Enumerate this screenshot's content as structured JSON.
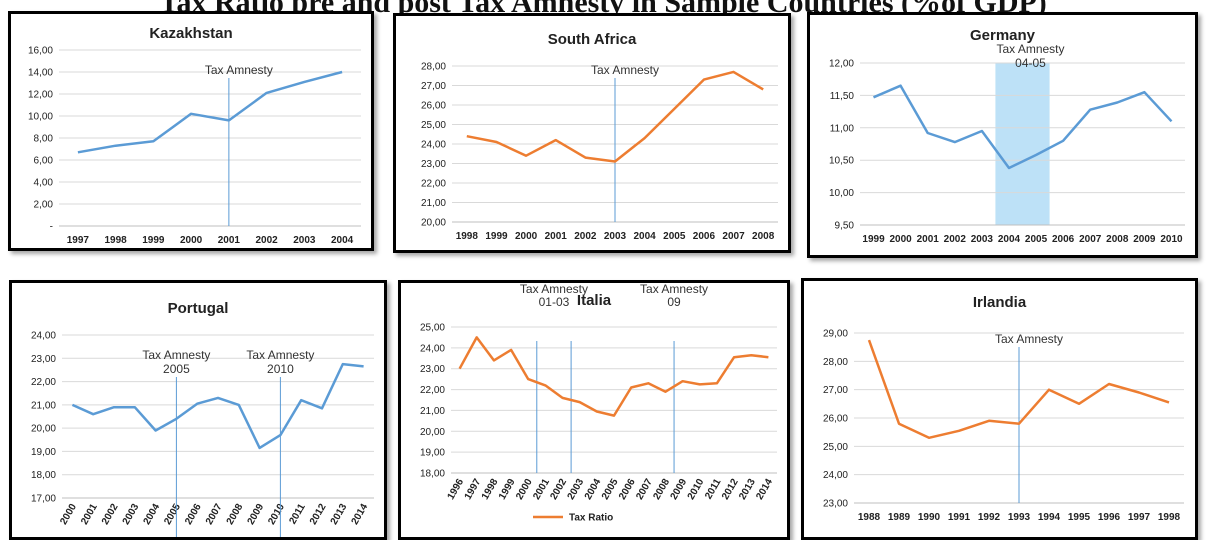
{
  "page": {
    "title": "Tax Ratio pre and post Tax Amnesty in Sample Countries (%of GDP)"
  },
  "colors": {
    "blue": "#5b9bd5",
    "orange": "#ed7d31",
    "marker": "#5b9bd5",
    "shade": "#bde1f7",
    "grid": "#d9d9d9"
  },
  "chart_data": [
    {
      "type": "line",
      "title": "Kazakhstan",
      "categories": [
        "1997",
        "1998",
        "1999",
        "2000",
        "2001",
        "2002",
        "2003",
        "2004"
      ],
      "series": [
        {
          "values": [
            6.7,
            7.3,
            7.7,
            10.2,
            9.6,
            12.1,
            13.1,
            14.0
          ],
          "color": "#5b9bd5"
        }
      ],
      "ylim": [
        0,
        16
      ],
      "yticks": [
        0,
        2,
        4,
        6,
        8,
        10,
        12,
        14,
        16
      ],
      "ytick_labels": [
        "-",
        "2,00",
        "4,00",
        "6,00",
        "8,00",
        "10,00",
        "12,00",
        "14,00",
        "16,00"
      ],
      "grid": true,
      "markers": [
        {
          "at": "2001",
          "label": [
            "Tax Amnesty"
          ]
        }
      ]
    },
    {
      "type": "line",
      "title": "South Africa",
      "categories": [
        "1998",
        "1999",
        "2000",
        "2001",
        "2002",
        "2003",
        "2004",
        "2005",
        "2006",
        "2007",
        "2008"
      ],
      "series": [
        {
          "values": [
            24.4,
            24.1,
            23.4,
            24.2,
            23.3,
            23.1,
            24.3,
            25.8,
            27.3,
            27.7,
            26.8
          ],
          "color": "#ed7d31"
        }
      ],
      "ylim": [
        20,
        28
      ],
      "yticks": [
        20,
        21,
        22,
        23,
        24,
        25,
        26,
        27,
        28
      ],
      "ytick_labels": [
        "20,00",
        "21,00",
        "22,00",
        "23,00",
        "24,00",
        "25,00",
        "26,00",
        "27,00",
        "28,00"
      ],
      "grid": true,
      "markers": [
        {
          "at": "2003",
          "label": [
            "Tax Amnesty"
          ]
        }
      ]
    },
    {
      "type": "line",
      "title": "Germany",
      "categories": [
        "1999",
        "2000",
        "2001",
        "2002",
        "2003",
        "2004",
        "2005",
        "2006",
        "2007",
        "2008",
        "2009",
        "2010"
      ],
      "series": [
        {
          "values": [
            11.47,
            11.65,
            10.92,
            10.78,
            10.95,
            10.38,
            10.58,
            10.8,
            11.28,
            11.39,
            11.55,
            11.1
          ],
          "color": "#5b9bd5"
        }
      ],
      "ylim": [
        9.5,
        12
      ],
      "yticks": [
        9.5,
        10,
        10.5,
        11,
        11.5,
        12
      ],
      "ytick_labels": [
        "9,50",
        "10,00",
        "10,50",
        "11,00",
        "11,50",
        "12,00"
      ],
      "grid": true,
      "shaded_range": {
        "from": "2004",
        "to": "2005",
        "label": [
          "Tax Amnesty",
          "04-05"
        ]
      }
    },
    {
      "type": "line",
      "title": "Portugal",
      "categories": [
        "2000",
        "2001",
        "2002",
        "2003",
        "2004",
        "2005",
        "2006",
        "2007",
        "2008",
        "2009",
        "2010",
        "2011",
        "2012",
        "2013",
        "2014"
      ],
      "series": [
        {
          "values": [
            21.0,
            20.6,
            20.9,
            20.9,
            19.9,
            20.4,
            21.05,
            21.3,
            21.0,
            19.15,
            19.7,
            21.2,
            20.85,
            22.75,
            22.65
          ],
          "color": "#5b9bd5"
        }
      ],
      "ylim": [
        17,
        24
      ],
      "yticks": [
        17,
        18,
        19,
        20,
        21,
        22,
        23,
        24
      ],
      "ytick_labels": [
        "17,00",
        "18,00",
        "19,00",
        "20,00",
        "21,00",
        "22,00",
        "23,00",
        "24,00"
      ],
      "grid": true,
      "markers": [
        {
          "at": "2005",
          "label": [
            "Tax Amnesty",
            "2005"
          ]
        },
        {
          "at": "2010",
          "label": [
            "Tax Amnesty",
            "2010"
          ]
        }
      ]
    },
    {
      "type": "line",
      "title": "Italia",
      "categories": [
        "1996",
        "1997",
        "1998",
        "1999",
        "2000",
        "2001",
        "2002",
        "2003",
        "2004",
        "2005",
        "2006",
        "2007",
        "2008",
        "2009",
        "2010",
        "2011",
        "2012",
        "2013",
        "2014"
      ],
      "series": [
        {
          "name": "Tax Ratio",
          "values": [
            23.0,
            24.5,
            23.4,
            23.9,
            22.5,
            22.2,
            21.6,
            21.4,
            20.95,
            20.75,
            22.1,
            22.3,
            21.9,
            22.4,
            22.25,
            22.3,
            23.55,
            23.65,
            23.55
          ],
          "color": "#ed7d31"
        }
      ],
      "ylim": [
        18,
        25
      ],
      "yticks": [
        18,
        19,
        20,
        21,
        22,
        23,
        24,
        25
      ],
      "ytick_labels": [
        "18,00",
        "19,00",
        "20,00",
        "21,00",
        "22,00",
        "23,00",
        "24,00",
        "25,00"
      ],
      "grid": true,
      "legend": "bottom",
      "marker_label_text": [
        [
          "Tax Amnesty",
          "01-03"
        ],
        [
          "Tax Amnesty",
          "09"
        ]
      ],
      "marker_lines_at": [
        "2000.5",
        "2002.5",
        "2008.5"
      ]
    },
    {
      "type": "line",
      "title": "Irlandia",
      "categories": [
        "1988",
        "1989",
        "1990",
        "1991",
        "1992",
        "1993",
        "1994",
        "1995",
        "1996",
        "1997",
        "1998"
      ],
      "series": [
        {
          "values": [
            28.75,
            25.8,
            25.3,
            25.55,
            25.9,
            25.8,
            27.0,
            26.5,
            27.2,
            26.9,
            26.55
          ],
          "color": "#ed7d31"
        }
      ],
      "ylim": [
        23,
        29
      ],
      "yticks": [
        23,
        24,
        25,
        26,
        27,
        28,
        29
      ],
      "ytick_labels": [
        "23,00",
        "24,00",
        "25,00",
        "26,00",
        "27,00",
        "28,00",
        "29,00"
      ],
      "grid": true,
      "markers": [
        {
          "at": "1993",
          "label": [
            "Tax Amnesty"
          ]
        }
      ]
    }
  ]
}
